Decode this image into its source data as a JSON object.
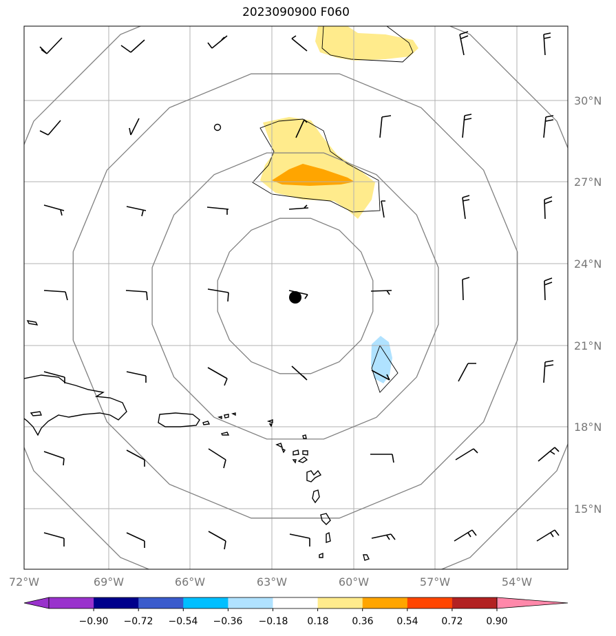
{
  "title": "2023090900 F060",
  "map": {
    "lon_labels": [
      "72°W",
      "69°W",
      "66°W",
      "63°W",
      "60°W",
      "57°W",
      "54°W"
    ],
    "lat_labels": [
      "30°N",
      "27°N",
      "24°N",
      "21°N",
      "18°N",
      "15°N"
    ],
    "storm_center": {
      "lon": -62.1,
      "lat": 22.8
    },
    "range_rings": 4
  },
  "colorbar": {
    "tick_labels": [
      "−0.90",
      "−0.72",
      "−0.54",
      "−0.36",
      "−0.18",
      "0.18",
      "0.36",
      "0.54",
      "0.72",
      "0.90"
    ],
    "colors": [
      "#9932CC",
      "#00008B",
      "#3A5BCC",
      "#00BFFF",
      "#B0E2FF",
      "#FFFFFF",
      "#FFEB8C",
      "#FFA500",
      "#FF4500",
      "#B22222",
      "#FF88AA"
    ]
  }
}
